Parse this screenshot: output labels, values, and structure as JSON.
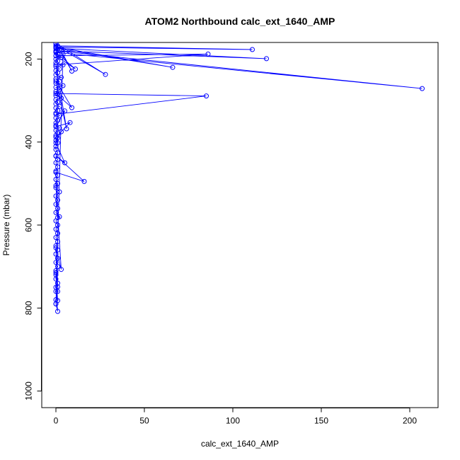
{
  "chart_data": {
    "type": "line",
    "title": "ATOM2 Northbound calc_ext_1640_AMP",
    "xlabel": "calc_ext_1640_AMP",
    "ylabel": "Pressure (mbar)",
    "xlim": [
      -8,
      216
    ],
    "ylim": [
      1040,
      160
    ],
    "y_inverted": true,
    "grid": false,
    "line_color": "#0000ff",
    "x_ticks": [
      0,
      50,
      100,
      150,
      200
    ],
    "y_ticks": [
      200,
      400,
      600,
      800,
      1000
    ],
    "series": [
      {
        "x": [
          0,
          1,
          0,
          2,
          0,
          1,
          0,
          3,
          0,
          1,
          0,
          4,
          0,
          2,
          0,
          1,
          0,
          3,
          0,
          2,
          0,
          4,
          0,
          2,
          0,
          1,
          0,
          3,
          0,
          1,
          0,
          2,
          0,
          1,
          0,
          2,
          0,
          1,
          0,
          0,
          2,
          0,
          1,
          0,
          1,
          0,
          1,
          0,
          0,
          1,
          0,
          1,
          0,
          1,
          0,
          1,
          0,
          1,
          0,
          2,
          0,
          1,
          0,
          1,
          0,
          2,
          0,
          1,
          0,
          1,
          0,
          1,
          0,
          1,
          0,
          1,
          0,
          1,
          0,
          0,
          0,
          1,
          0,
          1,
          0,
          0,
          4,
          9,
          0,
          28,
          0,
          111,
          0,
          66,
          0,
          119,
          0,
          207,
          0,
          11,
          0,
          86,
          0,
          6,
          0,
          9,
          0,
          85,
          0,
          5,
          0,
          8,
          0,
          3,
          0,
          5,
          0,
          16,
          0,
          1,
          0,
          3,
          0,
          1,
          0,
          1,
          0,
          1,
          0
        ],
        "y": [
          163,
          168,
          172,
          178,
          182,
          188,
          192,
          196,
          200,
          205,
          209,
          214,
          218,
          224,
          228,
          233,
          238,
          244,
          248,
          254,
          258,
          264,
          268,
          274,
          278,
          284,
          288,
          294,
          298,
          304,
          308,
          314,
          318,
          324,
          330,
          336,
          342,
          348,
          354,
          360,
          366,
          372,
          378,
          384,
          390,
          396,
          402,
          410,
          418,
          426,
          434,
          442,
          450,
          460,
          470,
          480,
          490,
          500,
          510,
          520,
          530,
          540,
          550,
          560,
          570,
          580,
          590,
          600,
          610,
          620,
          630,
          640,
          650,
          660,
          670,
          680,
          690,
          700,
          710,
          720,
          730,
          740,
          750,
          760,
          780,
          790,
          188,
          229,
          162,
          237,
          168,
          177,
          171,
          220,
          174,
          199,
          180,
          271,
          184,
          224,
          192,
          188,
          214,
          368,
          253,
          317,
          283,
          289,
          333,
          325,
          363,
          353,
          388,
          375,
          402,
          450,
          433,
          495,
          473,
          582,
          505,
          707,
          655,
          749,
          715,
          782,
          760,
          808,
          790
        ]
      }
    ]
  }
}
